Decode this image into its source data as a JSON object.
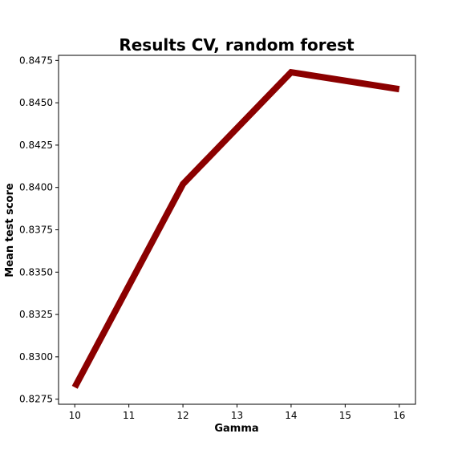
{
  "chart_data": {
    "type": "line",
    "title": "Results CV, random forest",
    "xlabel": "Gamma",
    "ylabel": "Mean test score",
    "x": [
      10,
      12,
      14,
      16
    ],
    "series": [
      {
        "values": [
          0.8282,
          0.8402,
          0.8468,
          0.8458
        ],
        "color": "#8b0000"
      }
    ],
    "xlim": [
      9.7,
      16.3
    ],
    "ylim": [
      0.8272,
      0.8478
    ],
    "xticks": [
      10,
      11,
      12,
      13,
      14,
      15,
      16
    ],
    "yticks": [
      "0.8275",
      "0.8300",
      "0.8325",
      "0.8350",
      "0.8375",
      "0.8400",
      "0.8425",
      "0.8450",
      "0.8475"
    ],
    "grid": false,
    "legend": "none"
  }
}
